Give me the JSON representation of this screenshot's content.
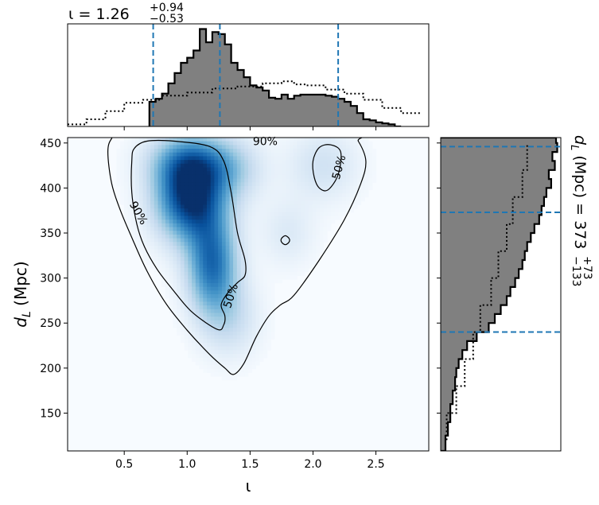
{
  "chart_data": [
    {
      "panel": "top-marginal",
      "type": "histogram",
      "title_param": "ι",
      "title_median": "1.26",
      "title_plus": "+0.94",
      "title_minus": "−0.53",
      "xlim": [
        0.05,
        2.92
      ],
      "bins_x": [
        0.7,
        0.75,
        0.8,
        0.85,
        0.9,
        0.95,
        1.0,
        1.05,
        1.1,
        1.15,
        1.2,
        1.25,
        1.3,
        1.35,
        1.4,
        1.45,
        1.5,
        1.55,
        1.6,
        1.65,
        1.7,
        1.75,
        1.8,
        1.85,
        1.9,
        1.95,
        2.0,
        2.05,
        2.1,
        2.15,
        2.2,
        2.25,
        2.3,
        2.35,
        2.4,
        2.45,
        2.5,
        2.55,
        2.6,
        2.65
      ],
      "posterior": [
        0.24,
        0.27,
        0.32,
        0.42,
        0.52,
        0.62,
        0.67,
        0.74,
        0.95,
        0.82,
        0.92,
        0.9,
        0.8,
        0.62,
        0.55,
        0.48,
        0.4,
        0.38,
        0.35,
        0.28,
        0.27,
        0.31,
        0.27,
        0.3,
        0.31,
        0.31,
        0.31,
        0.31,
        0.3,
        0.29,
        0.27,
        0.24,
        0.2,
        0.13,
        0.07,
        0.06,
        0.04,
        0.03,
        0.02,
        0.0
      ],
      "prior_x": [
        0.05,
        0.2,
        0.35,
        0.5,
        0.65,
        0.8,
        1.0,
        1.2,
        1.4,
        1.6,
        1.75,
        1.85,
        1.95,
        2.1,
        2.25,
        2.4,
        2.55,
        2.7,
        2.85
      ],
      "prior": [
        0.02,
        0.07,
        0.15,
        0.23,
        0.26,
        0.3,
        0.33,
        0.37,
        0.39,
        0.42,
        0.44,
        0.41,
        0.4,
        0.36,
        0.32,
        0.26,
        0.18,
        0.13,
        0.09
      ],
      "ylim": [
        0,
        1.0
      ],
      "quantiles": [
        0.73,
        1.26,
        2.2
      ]
    },
    {
      "panel": "joint-density",
      "type": "heatmap",
      "xlabel": "ι",
      "ylabel_main": "d",
      "ylabel_sub": "L",
      "ylabel_unit": "(Mpc)",
      "xlim": [
        0.05,
        2.92
      ],
      "ylim": [
        108,
        456
      ],
      "xticks": [
        0.5,
        1.0,
        1.5,
        2.0,
        2.5
      ],
      "xtick_labels": [
        "0.5",
        "1.0",
        "1.5",
        "2.0",
        "2.5"
      ],
      "yticks": [
        150,
        200,
        250,
        300,
        350,
        400,
        450
      ],
      "ytick_labels": [
        "150",
        "200",
        "250",
        "300",
        "350",
        "400",
        "450"
      ],
      "density_blobs": [
        {
          "x": 1.02,
          "y": 388,
          "sx": 0.19,
          "sy": 32,
          "w": 1.0
        },
        {
          "x": 1.2,
          "y": 315,
          "sx": 0.14,
          "sy": 38,
          "w": 0.78
        },
        {
          "x": 1.02,
          "y": 430,
          "sx": 0.22,
          "sy": 22,
          "w": 0.55
        },
        {
          "x": 1.35,
          "y": 420,
          "sx": 0.18,
          "sy": 25,
          "w": 0.28
        },
        {
          "x": 1.8,
          "y": 350,
          "sx": 0.15,
          "sy": 26,
          "w": 0.14
        },
        {
          "x": 2.08,
          "y": 425,
          "sx": 0.2,
          "sy": 28,
          "w": 0.2
        },
        {
          "x": 1.35,
          "y": 255,
          "sx": 0.16,
          "sy": 30,
          "w": 0.22
        }
      ],
      "contour_90": [
        [
          0.37,
          440
        ],
        [
          0.4,
          405
        ],
        [
          0.47,
          375
        ],
        [
          0.56,
          345
        ],
        [
          0.68,
          308
        ],
        [
          0.83,
          272
        ],
        [
          1.0,
          242
        ],
        [
          1.18,
          215
        ],
        [
          1.3,
          200
        ],
        [
          1.37,
          193
        ],
        [
          1.45,
          205
        ],
        [
          1.55,
          235
        ],
        [
          1.65,
          258
        ],
        [
          1.74,
          270
        ],
        [
          1.85,
          281
        ],
        [
          2.05,
          320
        ],
        [
          2.25,
          365
        ],
        [
          2.38,
          405
        ],
        [
          2.42,
          430
        ],
        [
          2.36,
          452
        ],
        [
          2.28,
          462
        ],
        [
          0.48,
          462
        ],
        [
          0.4,
          455
        ]
      ],
      "contour_50_main": [
        [
          0.56,
          430
        ],
        [
          0.56,
          395
        ],
        [
          0.6,
          360
        ],
        [
          0.66,
          335
        ],
        [
          0.76,
          310
        ],
        [
          0.88,
          288
        ],
        [
          1.04,
          262
        ],
        [
          1.24,
          243
        ],
        [
          1.29,
          248
        ],
        [
          1.3,
          258
        ],
        [
          1.27,
          270
        ],
        [
          1.32,
          283
        ],
        [
          1.4,
          295
        ],
        [
          1.46,
          303
        ],
        [
          1.46,
          320
        ],
        [
          1.4,
          350
        ],
        [
          1.35,
          395
        ],
        [
          1.29,
          430
        ],
        [
          1.18,
          446
        ],
        [
          0.9,
          452
        ],
        [
          0.68,
          452
        ],
        [
          0.58,
          444
        ]
      ],
      "contour_50_right": [
        [
          2.0,
          430
        ],
        [
          2.05,
          445
        ],
        [
          2.14,
          448
        ],
        [
          2.22,
          440
        ],
        [
          2.2,
          415
        ],
        [
          2.12,
          398
        ],
        [
          2.05,
          400
        ],
        [
          2.01,
          412
        ]
      ],
      "contour_small": [
        [
          1.75,
          344
        ],
        [
          1.78,
          347
        ],
        [
          1.81,
          344
        ],
        [
          1.81,
          340
        ],
        [
          1.78,
          337
        ],
        [
          1.75,
          340
        ]
      ],
      "contour_labels": [
        {
          "text": "90%",
          "x": 1.62,
          "y": 451,
          "angle": 0
        },
        {
          "text": "90%",
          "x": 0.61,
          "y": 372,
          "angle": 60
        },
        {
          "text": "50%",
          "x": 2.21,
          "y": 423,
          "angle": -75
        },
        {
          "text": "50%",
          "x": 1.35,
          "y": 280,
          "angle": -72
        }
      ]
    },
    {
      "panel": "right-marginal",
      "type": "histogram",
      "title_param_main": "d",
      "title_param_sub": "L",
      "title_unit": "(Mpc)",
      "title_median": "373",
      "title_plus": "+73",
      "title_minus": "−133",
      "ylim": [
        108,
        456
      ],
      "bins_y": [
        108,
        125,
        140,
        160,
        175,
        190,
        200,
        210,
        220,
        230,
        240,
        250,
        260,
        270,
        280,
        290,
        300,
        310,
        320,
        330,
        340,
        350,
        360,
        370,
        380,
        390,
        400,
        410,
        420,
        430,
        440,
        450
      ],
      "posterior": [
        0.04,
        0.06,
        0.08,
        0.1,
        0.12,
        0.13,
        0.15,
        0.18,
        0.22,
        0.3,
        0.4,
        0.45,
        0.5,
        0.55,
        0.58,
        0.62,
        0.65,
        0.68,
        0.7,
        0.72,
        0.75,
        0.78,
        0.82,
        0.84,
        0.86,
        0.88,
        0.92,
        0.9,
        0.95,
        0.93,
        0.97,
        0.96
      ],
      "prior_y": [
        120,
        150,
        180,
        210,
        240,
        270,
        300,
        330,
        360,
        390,
        420,
        450
      ],
      "prior": [
        0.05,
        0.13,
        0.2,
        0.27,
        0.33,
        0.42,
        0.48,
        0.55,
        0.6,
        0.68,
        0.72,
        0.78
      ],
      "xlim": [
        0,
        1.0
      ],
      "quantiles": [
        240,
        373,
        446
      ]
    }
  ]
}
